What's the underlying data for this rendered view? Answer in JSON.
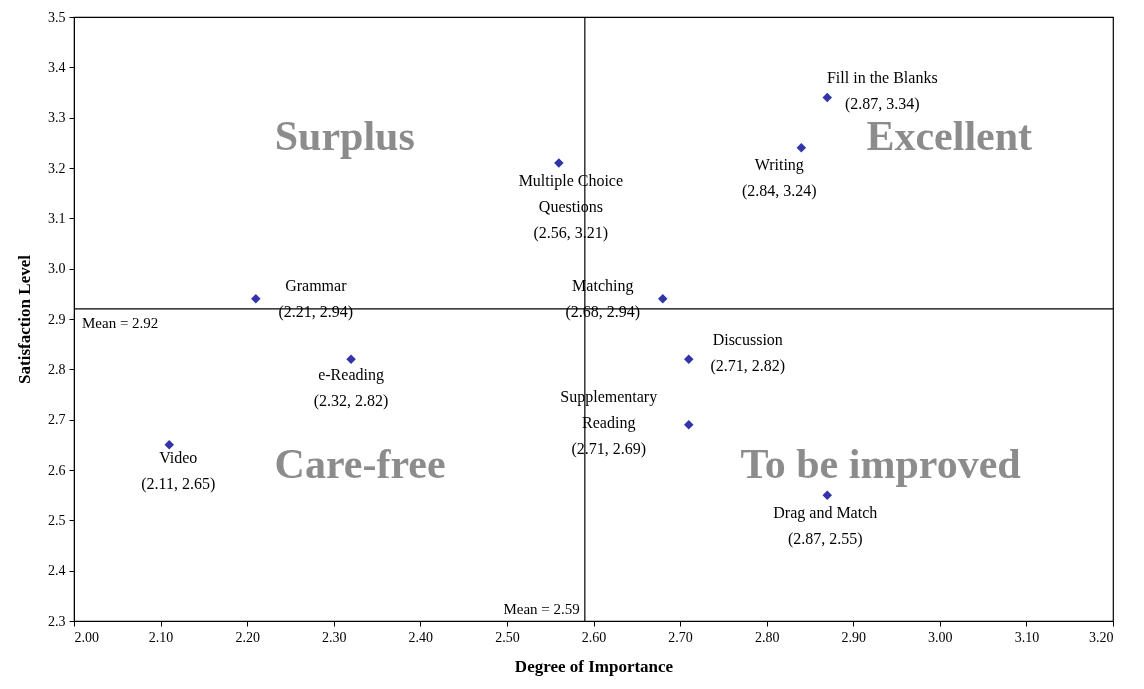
{
  "chart_data": {
    "type": "scatter",
    "xlabel": "Degree of Importance",
    "ylabel": "Satisfaction Level",
    "series": [
      {
        "color": "#3333aa",
        "x": [
          2.87,
          2.84,
          2.56,
          2.21,
          2.68,
          2.71,
          2.32,
          2.71,
          2.11,
          2.87
        ],
        "values": [
          3.34,
          3.24,
          3.21,
          2.94,
          2.94,
          2.82,
          2.82,
          2.69,
          2.65,
          2.55
        ]
      }
    ],
    "marker": "diamond",
    "grid": false,
    "xlim": [
      2.0,
      3.2
    ],
    "ylim": [
      2.3,
      3.5
    ],
    "xticks": [
      {
        "value": 2.0,
        "label": "2.00"
      },
      {
        "value": 2.1,
        "label": "2.10"
      },
      {
        "value": 2.2,
        "label": "2.20"
      },
      {
        "value": 2.3,
        "label": "2.30"
      },
      {
        "value": 2.4,
        "label": "2.40"
      },
      {
        "value": 2.5,
        "label": "2.50"
      },
      {
        "value": 2.6,
        "label": "2.60"
      },
      {
        "value": 2.7,
        "label": "2.70"
      },
      {
        "value": 2.8,
        "label": "2.80"
      },
      {
        "value": 2.9,
        "label": "2.90"
      },
      {
        "value": 3.0,
        "label": "3.00"
      },
      {
        "value": 3.1,
        "label": "3.10"
      },
      {
        "value": 3.2,
        "label": "3.20"
      }
    ],
    "yticks": [
      2.3,
      2.4,
      2.5,
      2.6,
      2.7,
      2.8,
      2.9,
      {
        "value": 3.0,
        "label": "3.0"
      },
      3.1,
      3.2,
      3.3,
      3.4,
      3.5
    ],
    "ref_lines": [
      {
        "axis": "x",
        "value": 2.59,
        "label": "Mean = 2.59",
        "color": "#000000"
      },
      {
        "axis": "y",
        "value": 2.92,
        "label": "Mean = 2.92",
        "color": "#000000"
      }
    ],
    "annotations": [
      "Surplus",
      "Excellent",
      "Care-free",
      "To be improved",
      {
        "text": "Fill in the Blanks\n(2.87, 3.34)",
        "x": 2.87,
        "y": 3.34
      },
      {
        "text": "Writing\n(2.84, 3.24)",
        "x": 2.84,
        "y": 3.24
      },
      {
        "text": "Multiple  Choice\nQuestions\n(2.56, 3.21)",
        "x": 2.56,
        "y": 3.21
      },
      {
        "text": "Grammar\n(2.21, 2.94)",
        "x": 2.21,
        "y": 2.94
      },
      {
        "text": "Matching\n(2.68, 2.94)",
        "x": 2.68,
        "y": 2.94
      },
      {
        "text": "Discussion\n(2.71, 2.82)",
        "x": 2.71,
        "y": 2.82
      },
      {
        "text": "e-Reading\n(2.32, 2.82)",
        "x": 2.32,
        "y": 2.82
      },
      {
        "text": "Supplementary\nReading\n(2.71, 2.69)",
        "x": 2.71,
        "y": 2.69
      },
      {
        "text": "Video\n(2.11, 2.65)",
        "x": 2.11,
        "y": 2.65
      },
      {
        "text": "Drag and Match\n(2.87, 2.55)",
        "x": 2.87,
        "y": 2.55
      }
    ]
  }
}
